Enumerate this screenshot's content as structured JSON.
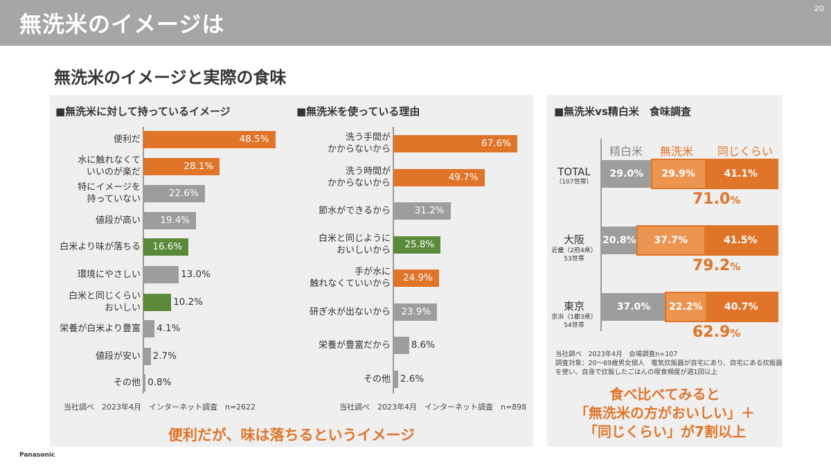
{
  "header": {
    "title": "無洗米のイメージは",
    "page_number": "20"
  },
  "subtitle": "無洗米のイメージと実際の食味",
  "brand": "Panasonic",
  "colors": {
    "orange": "#e07428",
    "orange_light": "#eb9550",
    "gray": "#9d9d9d",
    "green": "#5a8a3a"
  },
  "chart_data": [
    {
      "type": "bar",
      "orientation": "horizontal",
      "title": "■無洗米に対して持っているイメージ",
      "unit": "%",
      "xlim": [
        0,
        100
      ],
      "categories": [
        "便利だ",
        "水に触れなくて\nいいのが楽だ",
        "特にイメージを\n持っていない",
        "値段が高い",
        "白米より味が落ちる",
        "環境にやさしい",
        "白米と同じくらい\nおいしい",
        "栄養が白米より豊富",
        "値段が安い",
        "その他"
      ],
      "values": [
        48.5,
        28.1,
        22.6,
        19.4,
        16.6,
        13.0,
        10.2,
        4.1,
        2.7,
        0.8
      ],
      "value_labels": [
        "48.5%",
        "28.1%",
        "22.6%",
        "19.4%",
        "16.6%",
        "13.0%",
        "10.2%",
        "4.1%",
        "2.7%",
        "0.8%"
      ],
      "bar_colors": [
        "orange",
        "orange",
        "gray",
        "gray",
        "green",
        "gray",
        "green",
        "gray",
        "gray",
        "gray"
      ],
      "source": "当社調べ　2023年4月　インターネット調査　n=2622"
    },
    {
      "type": "bar",
      "orientation": "horizontal",
      "title": "■無洗米を使っている理由",
      "unit": "%",
      "xlim": [
        0,
        100
      ],
      "categories": [
        "洗う手間が\nかからないから",
        "洗う時間が\nかからないから",
        "節水ができるから",
        "白米と同じように\nおいしいから",
        "手が水に\n触れなくていいから",
        "研ぎ水が出ないから",
        "栄養が豊富だから",
        "その他"
      ],
      "values": [
        67.6,
        49.7,
        31.2,
        25.8,
        24.9,
        23.9,
        8.6,
        2.6
      ],
      "value_labels": [
        "67.6%",
        "49.7%",
        "31.2%",
        "25.8%",
        "24.9%",
        "23.9%",
        "8.6%",
        "2.6%"
      ],
      "bar_colors": [
        "orange",
        "orange",
        "gray",
        "green",
        "orange",
        "gray",
        "gray",
        "gray"
      ],
      "source": "当社調べ　2023年4月　インターネット調査　n=898"
    },
    {
      "type": "bar",
      "orientation": "horizontal",
      "stacked": true,
      "title": "■無洗米vs精白米　食味調査",
      "unit": "%",
      "legend": [
        "精白米",
        "無洗米",
        "同じくらい"
      ],
      "rows": [
        {
          "label": "TOTAL",
          "sublabel": "（107世帯）",
          "values": [
            29.0,
            29.9,
            41.1
          ],
          "value_labels": [
            "29.0%",
            "29.9%",
            "41.1%"
          ],
          "total": "71.0",
          "total_unit": "%"
        },
        {
          "label": "大阪",
          "sublabel": "近畿（2府4県）\n53世帯",
          "values": [
            20.8,
            37.7,
            41.5
          ],
          "value_labels": [
            "20.8%",
            "37.7%",
            "41.5%"
          ],
          "total": "79.2",
          "total_unit": "%"
        },
        {
          "label": "東京",
          "sublabel": "京浜（1都3県）\n54世帯",
          "values": [
            37.0,
            22.2,
            40.7
          ],
          "value_labels": [
            "37.0%",
            "22.2%",
            "40.7%"
          ],
          "total": "62.9",
          "total_unit": "%"
        }
      ],
      "note": "当社調べ　2023年4月　会場調査n=107\n調査対象：20〜69歳男女個人　電気炊飯器が自宅にあり、自宅にある炊飯器を使い、自身で炊飯したごはんの喫食頻度が週1回以上"
    }
  ],
  "conclusion_left": "便利だが、味は落ちるというイメージ",
  "conclusion_right": "食べ比べてみると\n「無洗米の方がおいしい」＋\n「同じくらい」が7割以上"
}
